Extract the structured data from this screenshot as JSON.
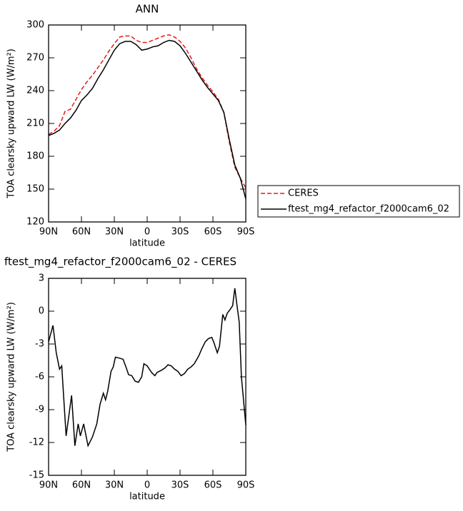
{
  "chart_data": [
    {
      "type": "line",
      "title": "ANN",
      "xlabel": "latitude",
      "ylabel": "TOA clearsky upward LW (W/m²)",
      "x": [
        90,
        85,
        80,
        75,
        70,
        65,
        60,
        55,
        50,
        45,
        40,
        35,
        30,
        25,
        20,
        15,
        10,
        5,
        0,
        -5,
        -10,
        -15,
        -20,
        -25,
        -30,
        -35,
        -40,
        -45,
        -50,
        -55,
        -60,
        -65,
        -70,
        -75,
        -80,
        -85,
        -90
      ],
      "series": [
        {
          "name": "CERES",
          "color": "#e41a1c",
          "dash": true,
          "values": [
            200,
            203,
            208,
            221,
            223,
            232,
            241,
            248,
            254,
            261,
            268,
            276,
            283,
            289,
            290,
            290,
            286,
            284,
            284,
            286,
            288,
            290,
            291,
            289,
            285,
            279,
            270,
            260,
            252,
            245,
            239,
            232,
            220,
            193,
            170,
            160,
            151
          ]
        },
        {
          "name": "ftest_mg4_refactor_f2000cam6_02",
          "color": "#000000",
          "dash": false,
          "values": [
            199,
            201,
            204,
            210,
            215,
            222,
            231,
            236,
            242,
            251,
            259,
            268,
            277,
            283,
            285,
            285,
            282,
            277,
            278,
            280,
            281,
            284,
            286,
            285,
            281,
            274,
            266,
            258,
            250,
            243,
            237,
            231,
            220,
            195,
            172,
            160,
            141
          ]
        }
      ],
      "xlim": [
        90,
        -90
      ],
      "xticks": [
        {
          "value": 90,
          "label": "90N"
        },
        {
          "value": 60,
          "label": "60N"
        },
        {
          "value": 30,
          "label": "30N"
        },
        0,
        {
          "value": -30,
          "label": "30S"
        },
        {
          "value": -60,
          "label": "60S"
        },
        {
          "value": -90,
          "label": "90S"
        }
      ],
      "ylim": [
        120,
        300
      ],
      "yticks": [
        120,
        150,
        180,
        210,
        240,
        270,
        300
      ],
      "legend": "right"
    },
    {
      "type": "line",
      "title": "ftest_mg4_refactor_f2000cam6_02 - CERES",
      "xlabel": "latitude",
      "ylabel": "TOA clearsky upward LW (W/m²)",
      "x": [
        90,
        86,
        83,
        80,
        78,
        74,
        69,
        66,
        63,
        61,
        58,
        54,
        50,
        46,
        43,
        40,
        38,
        36,
        33,
        31,
        29,
        25,
        22,
        19,
        17,
        14,
        11,
        8,
        5,
        3,
        0,
        -4,
        -7,
        -9,
        -13,
        -16,
        -19,
        -22,
        -25,
        -28,
        -31,
        -34,
        -37,
        -40,
        -43,
        -47,
        -50,
        -53,
        -56,
        -59,
        -61,
        -64,
        -66,
        -69,
        -71,
        -73,
        -76,
        -78,
        -80,
        -82,
        -84,
        -86,
        -90
      ],
      "series": [
        {
          "color": "#000000",
          "dash": false,
          "values": [
            -2.8,
            -1.3,
            -3.8,
            -5.3,
            -5.0,
            -11.4,
            -7.7,
            -12.3,
            -10.3,
            -11.4,
            -10.3,
            -12.3,
            -11.5,
            -10.3,
            -8.5,
            -7.5,
            -8.1,
            -7.3,
            -5.5,
            -5.1,
            -4.2,
            -4.3,
            -4.4,
            -5.2,
            -5.8,
            -5.9,
            -6.4,
            -6.5,
            -6.0,
            -4.8,
            -5.0,
            -5.6,
            -5.9,
            -5.6,
            -5.4,
            -5.2,
            -4.9,
            -5.0,
            -5.3,
            -5.5,
            -5.9,
            -5.7,
            -5.3,
            -5.1,
            -4.8,
            -4.1,
            -3.4,
            -2.8,
            -2.5,
            -2.4,
            -2.9,
            -3.8,
            -3.2,
            -0.3,
            -0.8,
            -0.2,
            0.2,
            0.5,
            2.1,
            0.5,
            -1.0,
            -6.0,
            -10.4
          ]
        }
      ],
      "xlim": [
        90,
        -90
      ],
      "xticks": [
        {
          "value": 90,
          "label": "90N"
        },
        {
          "value": 60,
          "label": "60N"
        },
        {
          "value": 30,
          "label": "30N"
        },
        0,
        {
          "value": -30,
          "label": "30S"
        },
        {
          "value": -60,
          "label": "60S"
        },
        {
          "value": -90,
          "label": "90S"
        }
      ],
      "ylim": [
        -15,
        3
      ],
      "yticks": [
        -15,
        -12,
        -9,
        -6,
        -3,
        0,
        3
      ]
    }
  ]
}
